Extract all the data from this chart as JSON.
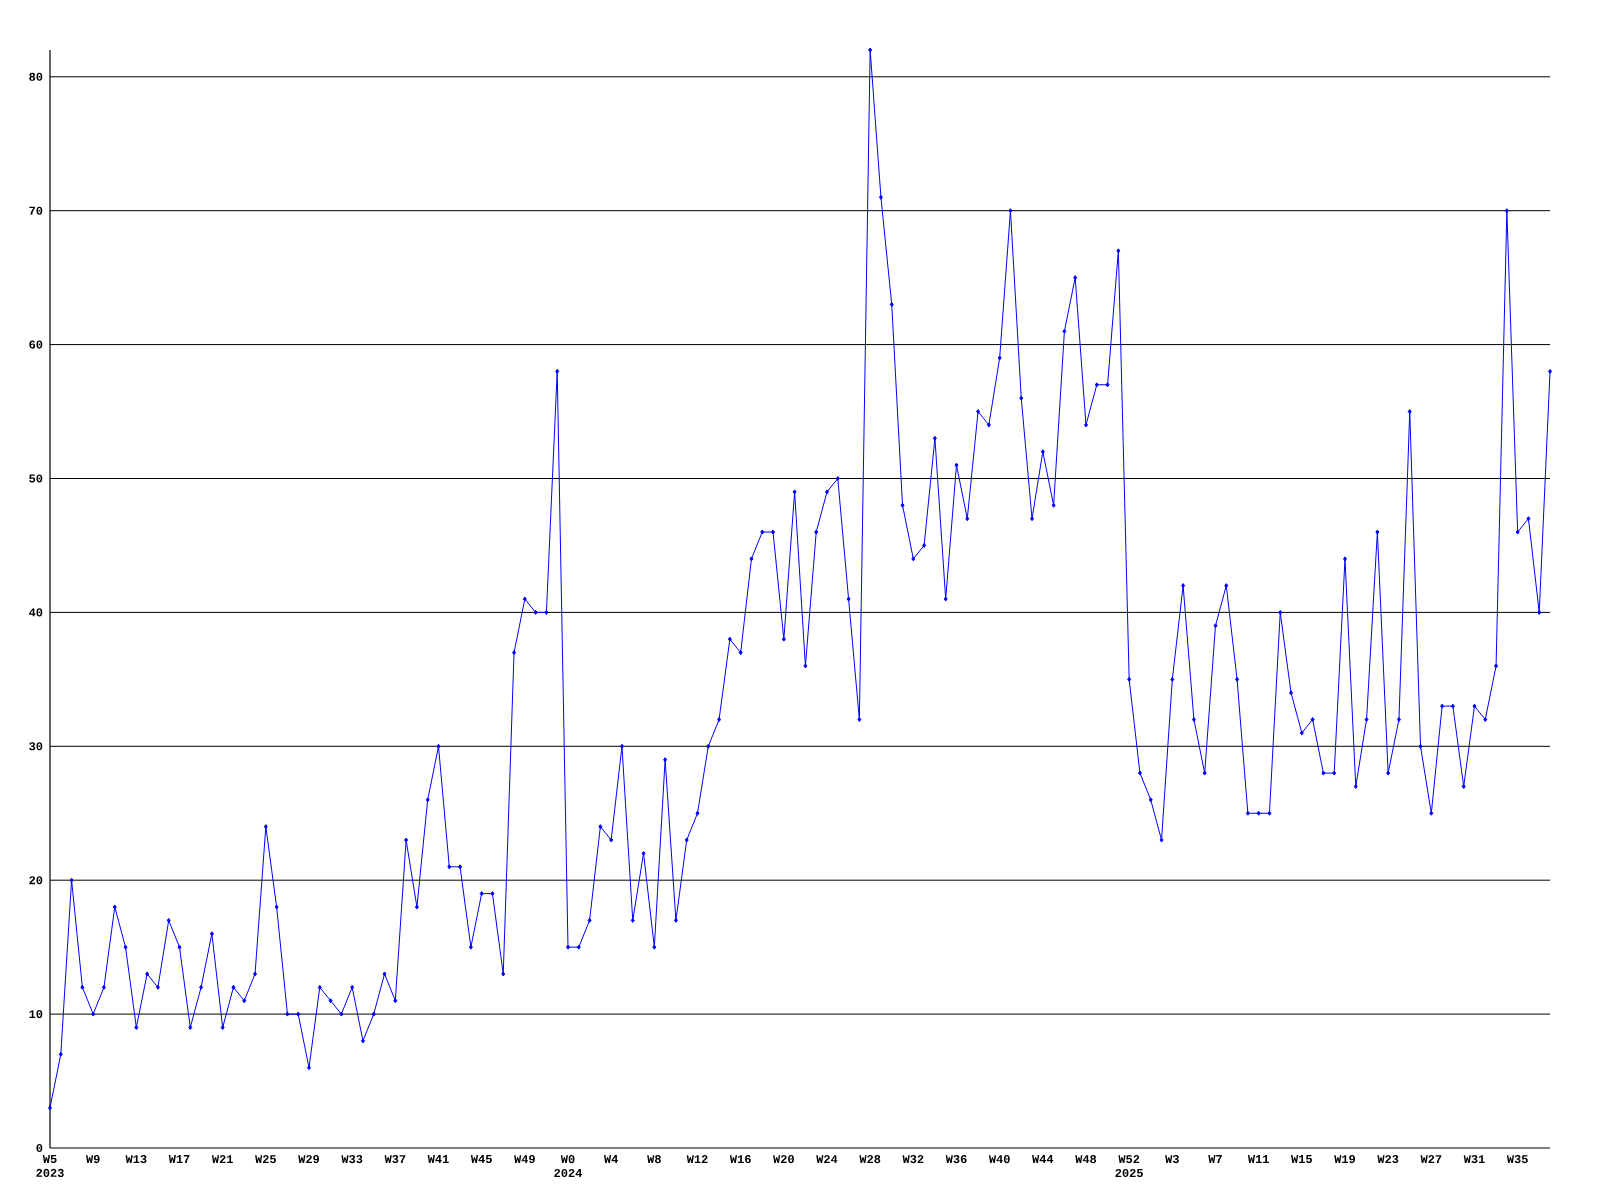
{
  "chart_data": {
    "type": "line",
    "color": "#0000ff",
    "marker": "diamond",
    "grid": "y",
    "categories": [
      "W5 2023",
      null,
      null,
      null,
      "W9",
      null,
      null,
      null,
      "W13",
      null,
      null,
      null,
      "W17",
      null,
      null,
      null,
      "W21",
      null,
      null,
      null,
      "W25",
      null,
      null,
      null,
      "W29",
      null,
      null,
      null,
      "W33",
      null,
      null,
      null,
      "W37",
      null,
      null,
      null,
      "W41",
      null,
      null,
      null,
      "W45",
      null,
      null,
      null,
      "W49",
      null,
      null,
      null,
      "W0 2024",
      null,
      null,
      null,
      "W4",
      null,
      null,
      null,
      "W8",
      null,
      null,
      null,
      "W12",
      null,
      null,
      null,
      "W16",
      null,
      null,
      null,
      "W20",
      null,
      null,
      null,
      "W24",
      null,
      null,
      null,
      "W28",
      null,
      null,
      null,
      "W32",
      null,
      null,
      null,
      "W36",
      null,
      null,
      null,
      "W40",
      null,
      null,
      null,
      "W44",
      null,
      null,
      null,
      "W48",
      null,
      null,
      null,
      "W52 2025",
      null,
      null,
      null,
      "W3",
      null,
      null,
      null,
      "W7",
      null,
      null,
      null,
      "W11",
      null,
      null,
      null,
      "W15",
      null,
      null,
      null,
      "W19",
      null,
      null,
      null,
      "W23",
      null,
      null,
      null,
      "W27",
      null,
      null,
      null,
      "W31",
      null,
      null,
      null,
      "W35",
      null,
      null,
      null
    ],
    "values": [
      3,
      7,
      20,
      12,
      10,
      12,
      18,
      15,
      9,
      13,
      12,
      17,
      15,
      9,
      12,
      16,
      9,
      12,
      11,
      13,
      24,
      18,
      10,
      10,
      6,
      12,
      11,
      10,
      12,
      8,
      10,
      13,
      11,
      23,
      18,
      26,
      30,
      21,
      21,
      15,
      19,
      19,
      13,
      37,
      41,
      40,
      40,
      58,
      15,
      15,
      17,
      24,
      23,
      30,
      17,
      22,
      15,
      29,
      17,
      23,
      25,
      30,
      32,
      38,
      37,
      44,
      46,
      46,
      38,
      49,
      36,
      46,
      49,
      50,
      41,
      32,
      82,
      71,
      63,
      48,
      44,
      45,
      53,
      41,
      51,
      47,
      55,
      54,
      59,
      70,
      56,
      47,
      52,
      48,
      61,
      65,
      54,
      57,
      57,
      67,
      35,
      28,
      26,
      23,
      35,
      42,
      32,
      28,
      39,
      42,
      35,
      25,
      25,
      25,
      40,
      34,
      31,
      32,
      28,
      28,
      44,
      27,
      32,
      46,
      28,
      32,
      55,
      30,
      25,
      33,
      33,
      27,
      33,
      32,
      36,
      70,
      46,
      47,
      40,
      58
    ],
    "ylim": [
      0,
      82
    ],
    "yticks": [
      0,
      10,
      20,
      30,
      40,
      50,
      60,
      70,
      80
    ]
  }
}
